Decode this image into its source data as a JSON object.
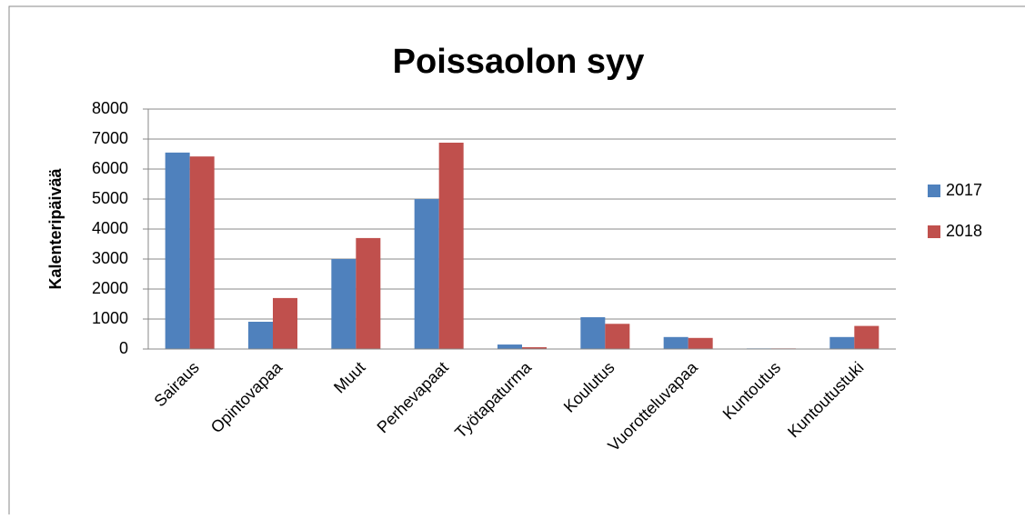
{
  "chart_data": {
    "type": "bar",
    "title": "Poissaolon syy",
    "y_label": "Kalenteripäivää",
    "categories": [
      "Sairaus",
      "Opintovapaa",
      "Muut",
      "Perhevapaat",
      "Työtapaturma",
      "Koulutus",
      "Vuorotteluvapaa",
      "Kuntoutus",
      "Kuntoutustuki"
    ],
    "series": [
      {
        "name": "2017",
        "color": "#4f81bd",
        "values": [
          6550,
          910,
          3000,
          5000,
          150,
          1060,
          400,
          20,
          400
        ]
      },
      {
        "name": "2018",
        "color": "#c0504d",
        "values": [
          6420,
          1700,
          3700,
          6880,
          60,
          840,
          370,
          20,
          770
        ]
      }
    ],
    "ylim": [
      0,
      8000
    ],
    "yticks": [
      0,
      1000,
      2000,
      3000,
      4000,
      5000,
      6000,
      7000,
      8000
    ],
    "grid": true,
    "legend": "right"
  }
}
